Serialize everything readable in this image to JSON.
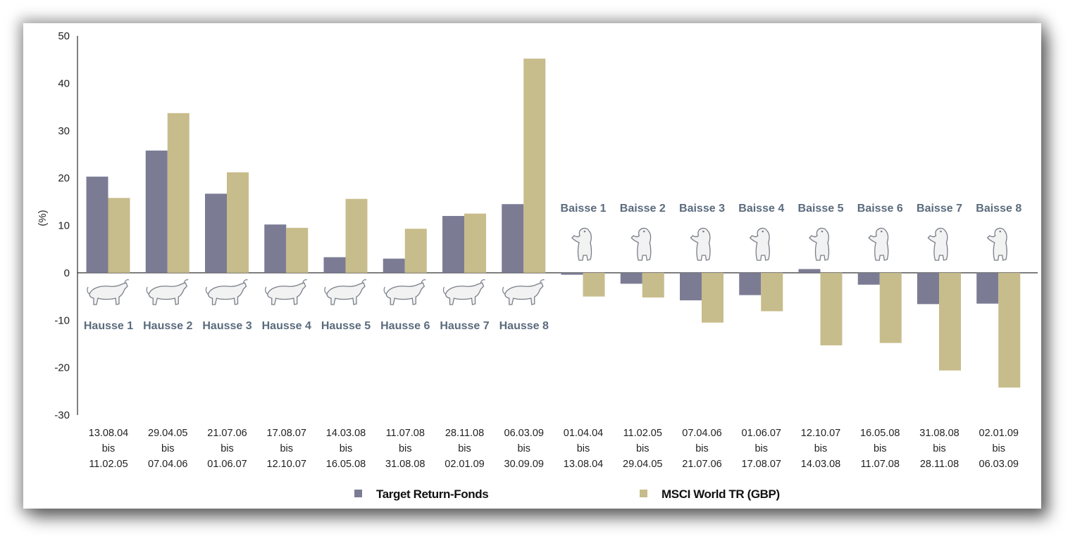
{
  "colors": {
    "fund": "#7b7c94",
    "msci": "#c7bc8b",
    "phase_label": "#5b6b7d",
    "axis": "#000000"
  },
  "chart_data": {
    "type": "bar",
    "ylabel": "(%)",
    "ylim": [
      -30,
      50
    ],
    "yticks": [
      50,
      40,
      30,
      20,
      10,
      0,
      -10,
      -20,
      -30
    ],
    "grid": false,
    "legend_position": "bottom",
    "categories": [
      {
        "phase": "Hausse 1",
        "kind": "bull",
        "start": "13.08.04",
        "sep": "bis",
        "end": "11.02.05"
      },
      {
        "phase": "Hausse 2",
        "kind": "bull",
        "start": "29.04.05",
        "sep": "bis",
        "end": "07.04.06"
      },
      {
        "phase": "Hausse 3",
        "kind": "bull",
        "start": "21.07.06",
        "sep": "bis",
        "end": "01.06.07"
      },
      {
        "phase": "Hausse 4",
        "kind": "bull",
        "start": "17.08.07",
        "sep": "bis",
        "end": "12.10.07"
      },
      {
        "phase": "Hausse 5",
        "kind": "bull",
        "start": "14.03.08",
        "sep": "bis",
        "end": "16.05.08"
      },
      {
        "phase": "Hausse 6",
        "kind": "bull",
        "start": "11.07.08",
        "sep": "bis",
        "end": "31.08.08"
      },
      {
        "phase": "Hausse 7",
        "kind": "bull",
        "start": "28.11.08",
        "sep": "bis",
        "end": "02.01.09"
      },
      {
        "phase": "Hausse 8",
        "kind": "bull",
        "start": "06.03.09",
        "sep": "bis",
        "end": "30.09.09"
      },
      {
        "phase": "Baisse 1",
        "kind": "bear",
        "start": "01.04.04",
        "sep": "bis",
        "end": "13.08.04"
      },
      {
        "phase": "Baisse 2",
        "kind": "bear",
        "start": "11.02.05",
        "sep": "bis",
        "end": "29.04.05"
      },
      {
        "phase": "Baisse 3",
        "kind": "bear",
        "start": "07.04.06",
        "sep": "bis",
        "end": "21.07.06"
      },
      {
        "phase": "Baisse 4",
        "kind": "bear",
        "start": "01.06.07",
        "sep": "bis",
        "end": "17.08.07"
      },
      {
        "phase": "Baisse 5",
        "kind": "bear",
        "start": "12.10.07",
        "sep": "bis",
        "end": "14.03.08"
      },
      {
        "phase": "Baisse 6",
        "kind": "bear",
        "start": "16.05.08",
        "sep": "bis",
        "end": "11.07.08"
      },
      {
        "phase": "Baisse 7",
        "kind": "bear",
        "start": "31.08.08",
        "sep": "bis",
        "end": "28.11.08"
      },
      {
        "phase": "Baisse 8",
        "kind": "bear",
        "start": "02.01.09",
        "sep": "bis",
        "end": "06.03.09"
      }
    ],
    "series": [
      {
        "name": "Target Return-Fonds",
        "color": "#7b7c94",
        "values": [
          20.3,
          25.8,
          16.7,
          10.2,
          3.3,
          3.0,
          12.0,
          14.5,
          -0.4,
          -2.3,
          -5.8,
          -4.7,
          0.8,
          -2.5,
          -6.6,
          -6.5
        ]
      },
      {
        "name": "MSCI World TR (GBP)",
        "color": "#c7bc8b",
        "values": [
          15.8,
          33.7,
          21.2,
          9.5,
          15.6,
          9.3,
          12.5,
          45.2,
          -5.0,
          -5.2,
          -10.5,
          -8.1,
          -15.3,
          -14.8,
          -20.6,
          -24.2
        ]
      }
    ]
  }
}
